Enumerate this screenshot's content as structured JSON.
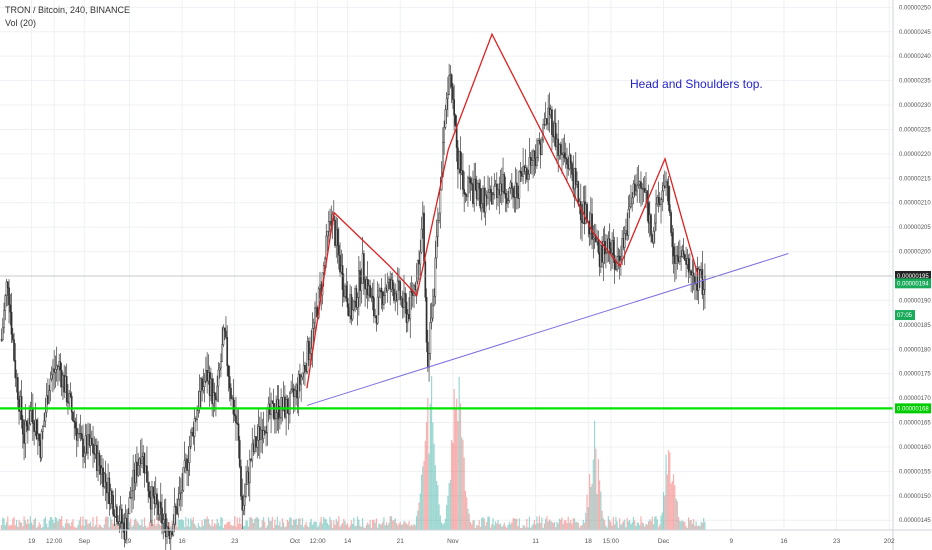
{
  "header": {
    "symbol": "TRON / Bitcoin, 240, BINANCE",
    "indicator": "Vol (20)"
  },
  "annotation": "Head and Shoulders top.",
  "colors": {
    "up": "#26a69a",
    "down": "#ef5350",
    "candle_body_up": "#ffffff",
    "candle_body_down": "#2a2a2a",
    "pattern_line": "#e02020",
    "trend_line": "#7b6fe0",
    "support_line": "#00e600",
    "grid": "#eef0f4",
    "tag_dark": "#222222",
    "tag_green": "#1aab5a",
    "tag_support": "#00cc00"
  },
  "price_tags": [
    {
      "label": "0.00000195",
      "kind": "dark",
      "price": 1.95e-06
    },
    {
      "label": "0.00000194",
      "kind": "green",
      "price": 1.935e-06
    },
    {
      "label": "07:05",
      "kind": "green",
      "price": 1.87e-06
    },
    {
      "label": "0.00000168",
      "kind": "support",
      "price": 1.679e-06
    }
  ],
  "chart_data": {
    "type": "candlestick",
    "y_axis_ticks": [
      "0.00000250",
      "0.00000245",
      "0.00000240",
      "0.00000235",
      "0.00000230",
      "0.00000225",
      "0.00000220",
      "0.00000215",
      "0.00000210",
      "0.00000205",
      "0.00000200",
      "0.00000195",
      "0.00000190",
      "0.00000185",
      "0.00000180",
      "0.00000175",
      "0.00000170",
      "0.00000165",
      "0.00000160",
      "0.00000155",
      "0.00000150",
      "0.00000145"
    ],
    "y_range": [
      1.43e-06,
      2.515e-06
    ],
    "x_axis_ticks": [
      "19",
      "12:00",
      "Sep",
      "9",
      "16",
      "23",
      "Oct",
      "12:00",
      "14",
      "21",
      "Nov",
      "11",
      "18",
      "15:00",
      "Dec",
      "9",
      "16",
      "23",
      "202"
    ],
    "x_tick_days": [
      -13,
      -10,
      -6,
      0,
      7,
      14,
      22,
      25,
      29,
      36,
      43,
      54,
      61,
      64,
      71,
      80,
      87,
      94,
      101
    ],
    "x_range_days": [
      -17.2,
      101.5
    ],
    "price_path": [
      [
        -17.0,
        1.00000182
      ],
      [
        -16.2,
        1.00000195
      ],
      [
        -15.2,
        1.00000176
      ],
      [
        -14.0,
        1.00000162
      ],
      [
        -13.0,
        1.00000168
      ],
      [
        -11.8,
        1.0000016
      ],
      [
        -10.6,
        1.00000174
      ],
      [
        -9.4,
        1.00000177
      ],
      [
        -7.8,
        1.00000168
      ],
      [
        -6.4,
        1.0000016
      ],
      [
        -5.0,
        1.0000016
      ],
      [
        -3.6,
        1.00000155
      ],
      [
        -2.2,
        1.00000149
      ],
      [
        -0.6,
        1.00000143
      ],
      [
        0.4,
        1.00000152
      ],
      [
        1.6,
        1.0000016
      ],
      [
        2.8,
        1.0000015
      ],
      [
        4.4,
        1.00000145
      ],
      [
        5.4,
        1.00000143
      ],
      [
        6.8,
        1.0000015
      ],
      [
        8.2,
        1.00000162
      ],
      [
        9.4,
        1.00000171
      ],
      [
        10.4,
        1.00000175
      ],
      [
        11.4,
        1.00000168
      ],
      [
        12.6,
        1.00000183
      ],
      [
        13.6,
        1.0000017
      ],
      [
        14.4,
        1.00000163
      ],
      [
        15.0,
        1.00000147
      ],
      [
        16.2,
        1.00000158
      ],
      [
        17.8,
        1.00000165
      ],
      [
        19.6,
        1.00000168
      ],
      [
        21.2,
        1.00000168
      ],
      [
        22.6,
        1.00000173
      ],
      [
        24.2,
        1.00000182
      ],
      [
        25.6,
        1.00000194
      ],
      [
        26.8,
        1.00000208
      ],
      [
        28.4,
        1.00000194
      ],
      [
        29.6,
        1.00000187
      ],
      [
        31.0,
        1.00000197
      ],
      [
        32.6,
        1.00000187
      ],
      [
        34.0,
        1.00000193
      ],
      [
        35.6,
        1.00000192
      ],
      [
        37.0,
        1.00000187
      ],
      [
        38.0,
        1.00000194
      ],
      [
        39.0,
        1.00000206
      ],
      [
        39.6,
        1.00000178
      ],
      [
        40.4,
        1.0000019
      ],
      [
        41.4,
        1.00000215
      ],
      [
        42.6,
        1.0000024
      ],
      [
        43.6,
        1.0000022
      ],
      [
        44.6,
        1.00000213
      ],
      [
        46.0,
        1.00000212
      ],
      [
        47.6,
        1.0000021
      ],
      [
        49.2,
        1.00000214
      ],
      [
        51.0,
        1.00000211
      ],
      [
        52.6,
        1.00000217
      ],
      [
        54.4,
        1.00000221
      ],
      [
        55.8,
        1.00000229
      ],
      [
        57.2,
        1.0000022
      ],
      [
        58.6,
        1.00000218
      ],
      [
        60.0,
        1.00000209
      ],
      [
        61.4,
        1.00000205
      ],
      [
        62.4,
        1.00000198
      ],
      [
        63.6,
        1.00000203
      ],
      [
        64.6,
        1.00000197
      ],
      [
        66.0,
        1.00000204
      ],
      [
        67.2,
        1.00000214
      ],
      [
        68.6,
        1.00000212
      ],
      [
        69.4,
        1.00000204
      ],
      [
        70.4,
        1.0000021
      ],
      [
        71.4,
        1.00000212
      ],
      [
        72.4,
        1.000002
      ],
      [
        73.6,
        1.00000198
      ],
      [
        74.8,
        1.00000195
      ],
      [
        75.8,
        1.00000194
      ],
      [
        76.6,
        1.00000193
      ]
    ],
    "head_and_shoulders_line": [
      [
        23.6,
        1.72e-06
      ],
      [
        27.2,
        2.08e-06
      ],
      [
        34.6,
        1.97e-06
      ],
      [
        38.2,
        1.91e-06
      ],
      [
        42.4,
        2.21e-06
      ],
      [
        48.2,
        2.445e-06
      ],
      [
        61.6,
        2.04e-06
      ],
      [
        65.2,
        1.97e-06
      ],
      [
        71.2,
        2.19e-06
      ],
      [
        75.6,
        1.95e-06
      ]
    ],
    "neckline": [
      [
        23.6,
        1.685e-06
      ],
      [
        87.6,
        1.996e-06
      ]
    ],
    "support_level": 1.679e-06,
    "volume_spikes_days": [
      39.4,
      40.2,
      43.2,
      44.0,
      71.8,
      61.8
    ]
  }
}
